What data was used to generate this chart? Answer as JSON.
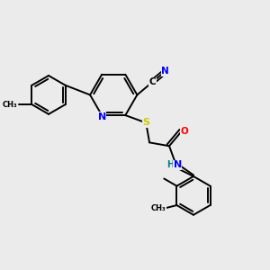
{
  "background_color": "#ebebeb",
  "bond_color": "#000000",
  "atom_colors": {
    "N": "#0000ff",
    "O": "#ff0000",
    "S": "#cccc00",
    "C": "#000000",
    "H": "#008080"
  },
  "figsize": [
    3.0,
    3.0
  ],
  "dpi": 100
}
